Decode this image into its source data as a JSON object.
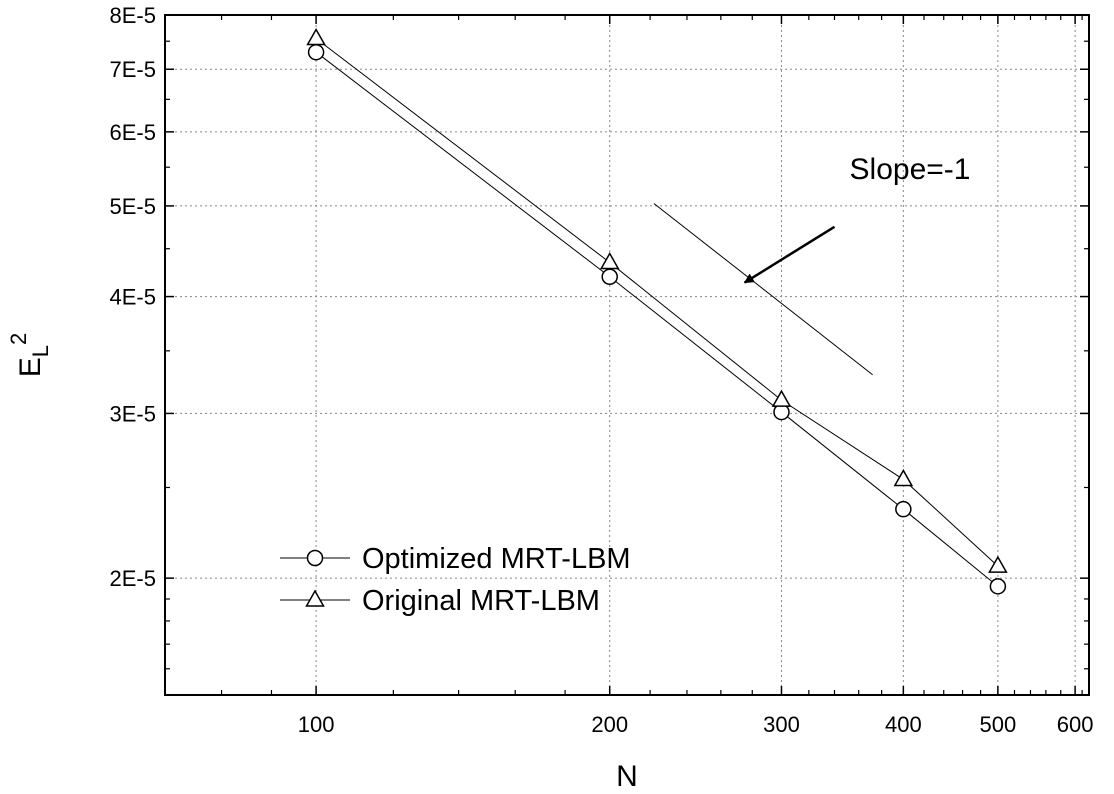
{
  "chart_data": {
    "type": "line",
    "xscale": "log",
    "yscale": "log",
    "xlim": [
      70,
      620
    ],
    "ylim": [
      1.5e-05,
      8e-05
    ],
    "xticks": [
      100,
      200,
      300,
      400,
      500,
      600
    ],
    "xtick_labels": [
      "100",
      "200",
      "300",
      "400",
      "500",
      "600"
    ],
    "yticks": [
      2e-05,
      3e-05,
      4e-05,
      5e-05,
      6e-05,
      7e-05,
      8e-05
    ],
    "ytick_labels": [
      "2E-5",
      "3E-5",
      "4E-5",
      "5E-5",
      "6E-5",
      "7E-5",
      "8E-5"
    ],
    "xlabel": "N",
    "ylabel": {
      "base": "E",
      "sub": "L",
      "sup": "2"
    },
    "grid": true,
    "legend_position": "bottom-left",
    "series": [
      {
        "name": "Optimized MRT-LBM",
        "marker": "circle",
        "x": [
          100,
          200,
          300,
          400,
          500
        ],
        "y": [
          7.3e-05,
          4.2e-05,
          3.01e-05,
          2.37e-05,
          1.96e-05
        ]
      },
      {
        "name": "Original MRT-LBM",
        "marker": "triangle",
        "x": [
          100,
          200,
          300,
          400,
          500
        ],
        "y": [
          7.55e-05,
          4.35e-05,
          3.1e-05,
          2.55e-05,
          2.06e-05
        ]
      }
    ],
    "reference_line": {
      "x": [
        222,
        372
      ],
      "y": [
        5.03e-05,
        3.3e-05
      ]
    },
    "annotation": {
      "text": "Slope=-1",
      "arrow_from": [
        340,
        4.75e-05
      ],
      "arrow_to": [
        275,
        4.14e-05
      ]
    }
  }
}
